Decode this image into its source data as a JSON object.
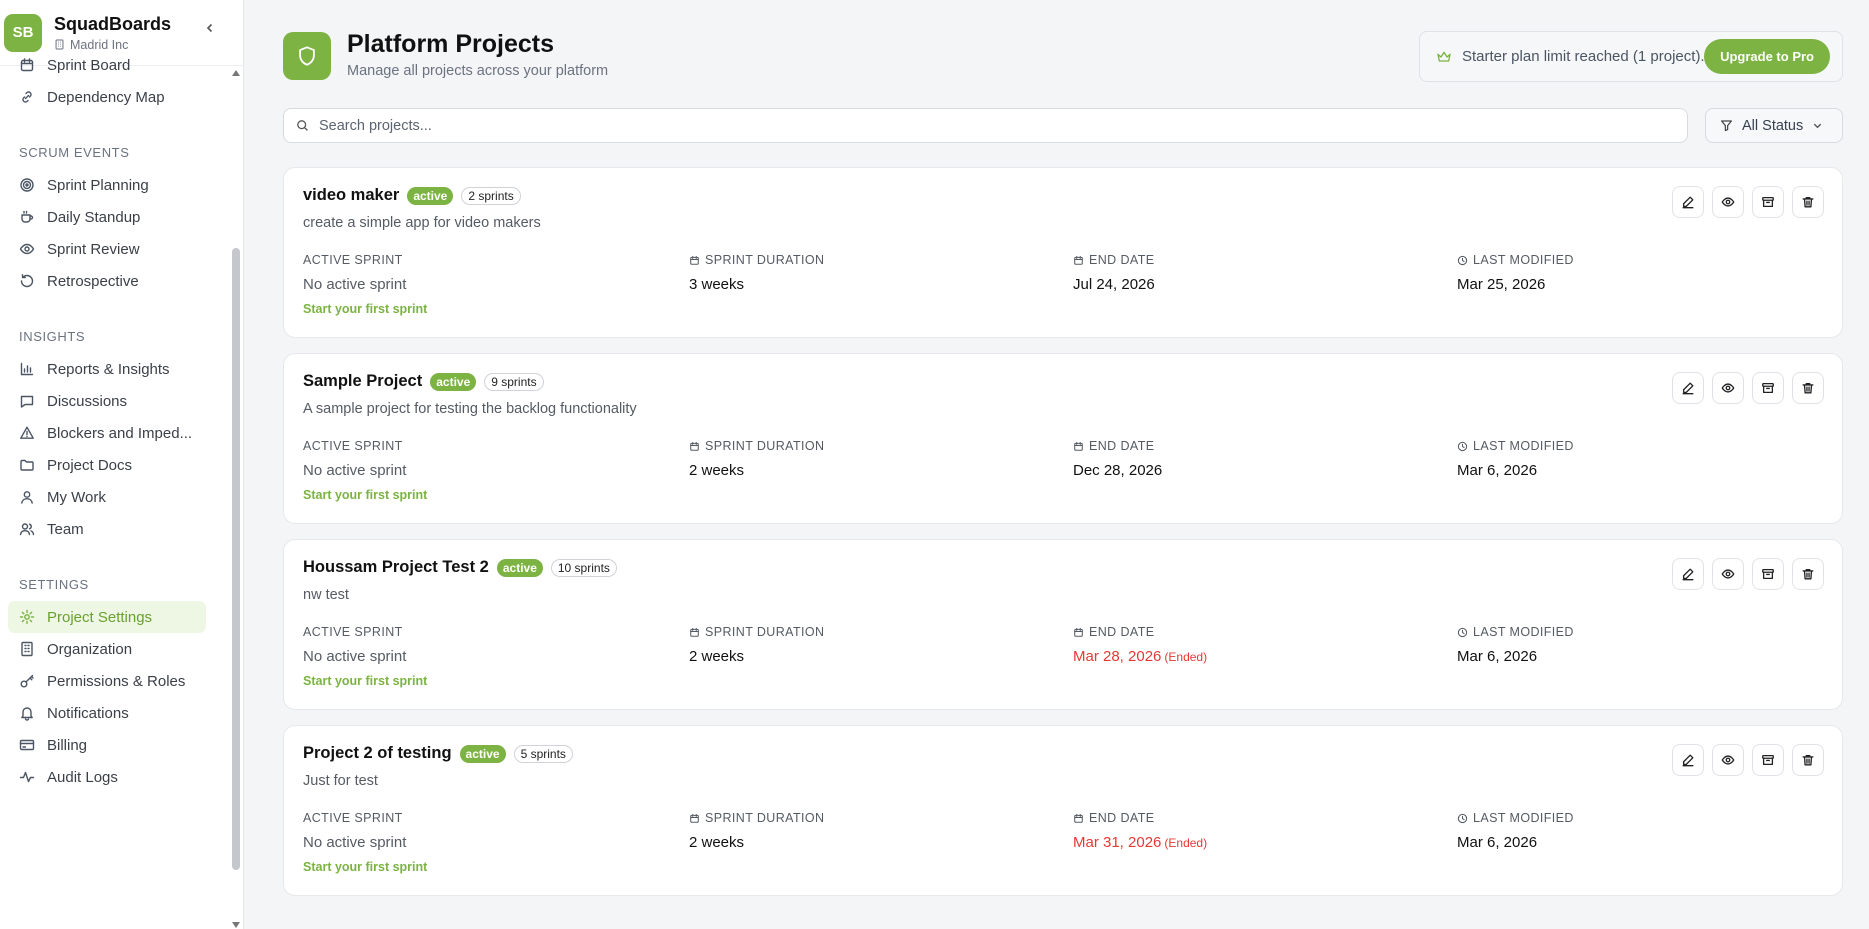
{
  "brand": {
    "initials": "SB",
    "name": "SquadBoards",
    "org": "Madrid Inc"
  },
  "sidebar": {
    "items_top": [
      {
        "label": "Sprint Board",
        "icon": "calendar-icon"
      },
      {
        "label": "Dependency Map",
        "icon": "link-icon"
      }
    ],
    "sections": [
      {
        "title": "SCRUM EVENTS",
        "items": [
          {
            "label": "Sprint Planning",
            "icon": "target-icon"
          },
          {
            "label": "Daily Standup",
            "icon": "coffee-icon"
          },
          {
            "label": "Sprint Review",
            "icon": "eye-icon"
          },
          {
            "label": "Retrospective",
            "icon": "rotate-icon"
          }
        ]
      },
      {
        "title": "INSIGHTS",
        "items": [
          {
            "label": "Reports & Insights",
            "icon": "bar-chart-icon"
          },
          {
            "label": "Discussions",
            "icon": "message-icon"
          },
          {
            "label": "Blockers and Imped...",
            "icon": "warning-icon"
          },
          {
            "label": "Project Docs",
            "icon": "folder-icon"
          },
          {
            "label": "My Work",
            "icon": "user-icon"
          },
          {
            "label": "Team",
            "icon": "users-icon"
          }
        ]
      },
      {
        "title": "SETTINGS",
        "items": [
          {
            "label": "Project Settings",
            "icon": "gear-icon",
            "active": true
          },
          {
            "label": "Organization",
            "icon": "building-icon"
          },
          {
            "label": "Permissions & Roles",
            "icon": "key-icon"
          },
          {
            "label": "Notifications",
            "icon": "bell-icon"
          },
          {
            "label": "Billing",
            "icon": "credit-card-icon"
          },
          {
            "label": "Audit Logs",
            "icon": "activity-icon"
          }
        ]
      }
    ]
  },
  "header": {
    "title": "Platform Projects",
    "subtitle": "Manage all projects across your platform",
    "plan_notice": "Starter plan limit reached (1 project).",
    "upgrade_label": "Upgrade to Pro"
  },
  "search": {
    "placeholder": "Search projects...",
    "value": ""
  },
  "filter": {
    "label": "All Status"
  },
  "columns": {
    "active_sprint": "ACTIVE SPRINT",
    "sprint_duration": "SPRINT DURATION",
    "end_date": "END DATE",
    "last_modified": "LAST MODIFIED"
  },
  "projects": [
    {
      "name": "video maker",
      "status": "active",
      "sprints": "2 sprints",
      "description": "create a simple app for video makers",
      "active_sprint": "No active sprint",
      "start_link": "Start your first sprint",
      "duration": "3 weeks",
      "end_date": "Jul 24, 2026",
      "ended": false,
      "ended_label": "",
      "last_modified": "Mar 25, 2026"
    },
    {
      "name": "Sample Project",
      "status": "active",
      "sprints": "9 sprints",
      "description": "A sample project for testing the backlog functionality",
      "active_sprint": "No active sprint",
      "start_link": "Start your first sprint",
      "duration": "2 weeks",
      "end_date": "Dec 28, 2026",
      "ended": false,
      "ended_label": "",
      "last_modified": "Mar 6, 2026"
    },
    {
      "name": "Houssam Project Test 2",
      "status": "active",
      "sprints": "10 sprints",
      "description": "nw test",
      "active_sprint": "No active sprint",
      "start_link": "Start your first sprint",
      "duration": "2 weeks",
      "end_date": "Mar 28, 2026",
      "ended": true,
      "ended_label": "(Ended)",
      "last_modified": "Mar 6, 2026"
    },
    {
      "name": "Project 2 of testing",
      "status": "active",
      "sprints": "5 sprints",
      "description": "Just for test",
      "active_sprint": "No active sprint",
      "start_link": "Start your first sprint",
      "duration": "2 weeks",
      "end_date": "Mar 31, 2026",
      "ended": true,
      "ended_label": "(Ended)",
      "last_modified": "Mar 6, 2026"
    }
  ],
  "colors": {
    "accent": "#7cb342",
    "accent_light": "#eef6e4",
    "danger": "#e53935"
  }
}
